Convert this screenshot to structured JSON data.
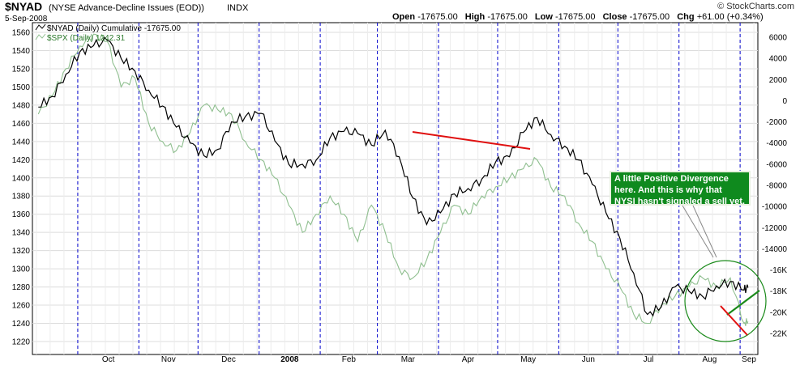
{
  "header": {
    "symbol": "$NYAD",
    "name": "(NYSE Advance-Decline Issues (EOD))",
    "exchange": "INDX",
    "date": "5-Sep-2008",
    "open_label": "Open",
    "open_value": "-17675.00",
    "high_label": "High",
    "high_value": "-17675.00",
    "low_label": "Low",
    "low_value": "-17675.00",
    "close_label": "Close",
    "close_value": "-17675.00",
    "chg_label": "Chg",
    "chg_value": "+61.00 (+0.34%)",
    "watermark": "© StockCharts.com"
  },
  "legend": {
    "primary": "$NYAD (Daily) Cumulative -17675.00",
    "secondary": "$SPX (Daily) 1242.31"
  },
  "annotation": {
    "lines": [
      "A little Positive Divergence",
      "here. And this is why that",
      "NYSI hasn't signaled a sell yet."
    ]
  },
  "colors": {
    "nyad": "#000000",
    "spx": "#8fbf8f",
    "divider": "#0000cc",
    "trend_red": "#e01010",
    "trend_green": "#1a8a1a",
    "annot_bg": "#0f8a1e",
    "circle": "#1a8a1a"
  },
  "chart_data": {
    "type": "line",
    "x": [
      "2007-09-11",
      "2007-09-18",
      "2007-09-25",
      "2007-10-02",
      "2007-10-09",
      "2007-10-16",
      "2007-10-23",
      "2007-10-30",
      "2007-11-06",
      "2007-11-13",
      "2007-11-20",
      "2007-11-27",
      "2007-12-04",
      "2007-12-11",
      "2007-12-18",
      "2007-12-25",
      "2008-01-02",
      "2008-01-09",
      "2008-01-16",
      "2008-01-23",
      "2008-01-30",
      "2008-02-06",
      "2008-02-13",
      "2008-02-20",
      "2008-02-27",
      "2008-03-05",
      "2008-03-12",
      "2008-03-19",
      "2008-03-26",
      "2008-04-02",
      "2008-04-09",
      "2008-04-16",
      "2008-04-23",
      "2008-04-30",
      "2008-05-07",
      "2008-05-14",
      "2008-05-21",
      "2008-05-28",
      "2008-06-04",
      "2008-06-11",
      "2008-06-18",
      "2008-06-25",
      "2008-07-02",
      "2008-07-09",
      "2008-07-16",
      "2008-07-23",
      "2008-07-30",
      "2008-08-06",
      "2008-08-13",
      "2008-08-20",
      "2008-08-27",
      "2008-09-03",
      "2008-09-05"
    ],
    "series": [
      {
        "name": "$NYAD (Daily) Cumulative",
        "axis": "right",
        "values": [
          -600,
          400,
          2500,
          4600,
          5200,
          5700,
          4000,
          2800,
          1000,
          -500,
          -2500,
          -4000,
          -5200,
          -4600,
          -2000,
          -1500,
          -1200,
          -3800,
          -6000,
          -6000,
          -5600,
          -3500,
          -2900,
          -3100,
          -4200,
          -2800,
          -5300,
          -9200,
          -11700,
          -10600,
          -8800,
          -8300,
          -7400,
          -5800,
          -5300,
          -3000,
          -1600,
          -3200,
          -4300,
          -5600,
          -7900,
          -10600,
          -13000,
          -16300,
          -20200,
          -19500,
          -17600,
          -18000,
          -18500,
          -17500,
          -17100,
          -17900,
          -17675
        ]
      },
      {
        "name": "$SPX (Daily)",
        "axis": "left",
        "values": [
          1470,
          1490,
          1520,
          1545,
          1558,
          1550,
          1500,
          1510,
          1460,
          1440,
          1430,
          1450,
          1480,
          1475,
          1470,
          1440,
          1420,
          1400,
          1370,
          1340,
          1360,
          1380,
          1360,
          1330,
          1370,
          1340,
          1300,
          1290,
          1310,
          1340,
          1370,
          1360,
          1380,
          1390,
          1400,
          1410,
          1420,
          1390,
          1380,
          1350,
          1330,
          1300,
          1280,
          1250,
          1240,
          1260,
          1270,
          1280,
          1290,
          1280,
          1290,
          1240,
          1242
        ]
      }
    ],
    "xlabels": [
      "Oct",
      "Nov",
      "Dec",
      "2008",
      "Feb",
      "Mar",
      "Apr",
      "May",
      "Jun",
      "Jul",
      "Aug",
      "Sep"
    ],
    "xlabel_dates": [
      "2007-10-01",
      "2007-11-01",
      "2007-12-01",
      "2008-01-01",
      "2008-02-01",
      "2008-03-01",
      "2008-04-01",
      "2008-05-01",
      "2008-06-01",
      "2008-07-01",
      "2008-08-01",
      "2008-09-01"
    ],
    "y_left": {
      "ticks": [
        1220,
        1240,
        1260,
        1280,
        1300,
        1320,
        1340,
        1360,
        1380,
        1400,
        1420,
        1440,
        1460,
        1480,
        1500,
        1520,
        1540,
        1560
      ]
    },
    "y_right": {
      "ticks": [
        "6000",
        "4000",
        "2000",
        "0",
        "-2000",
        "-4000",
        "-6000",
        "-8000",
        "-10000",
        "-12000",
        "-14000",
        "-16K",
        "-18K",
        "-20K",
        "-22K"
      ]
    },
    "grid": true
  }
}
